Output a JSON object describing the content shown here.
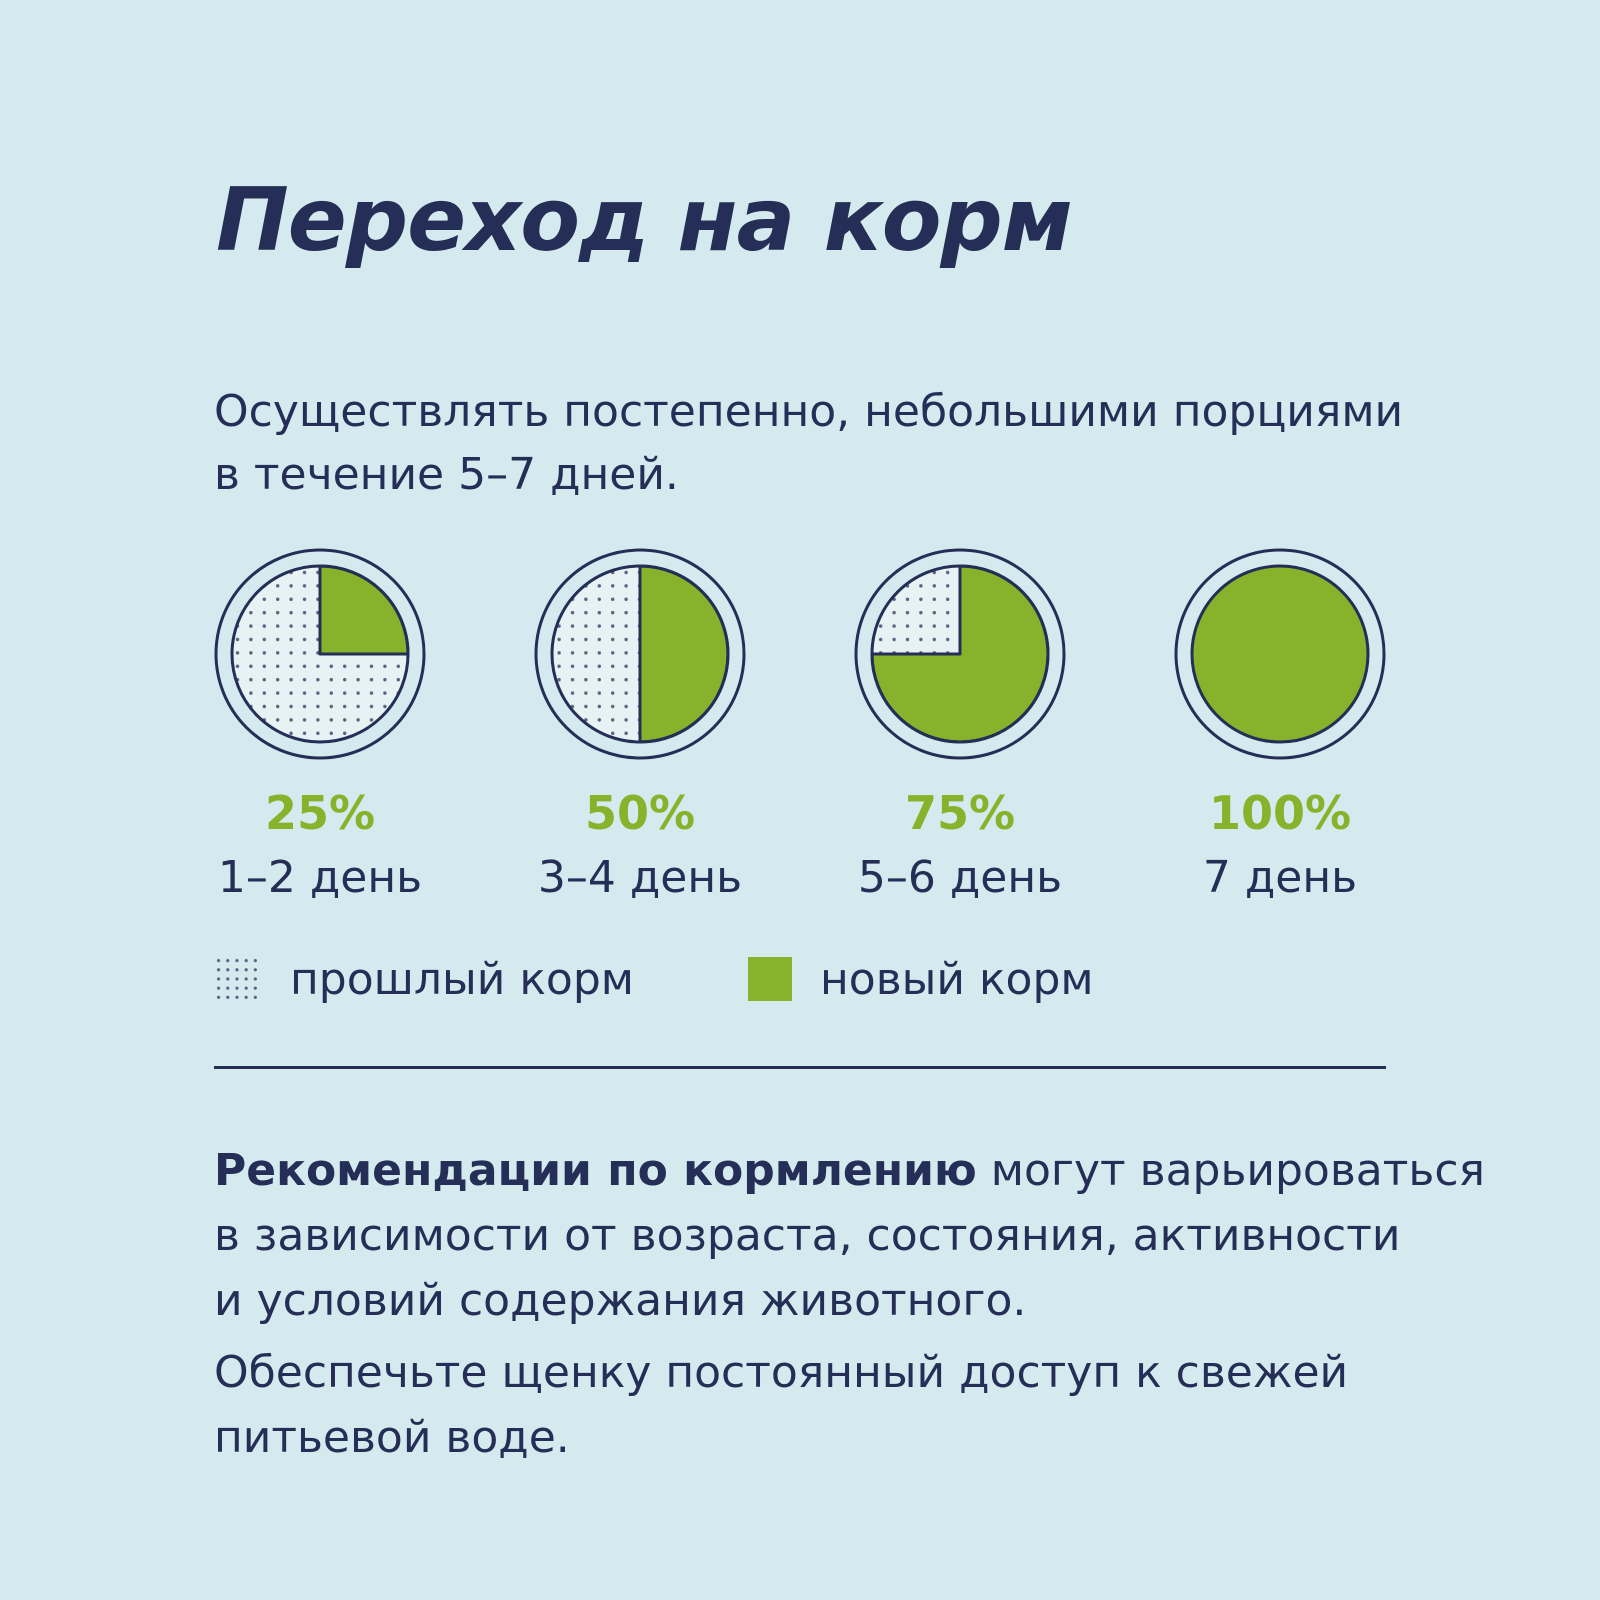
{
  "title": "Переход на корм",
  "intro": {
    "lines": [
      "Осуществлять постепенно, небольшими порциями",
      "в течение 5–7 дней."
    ]
  },
  "colors": {
    "background": "#d4eaee",
    "ink": "#252e56",
    "new_food": "#86b22c",
    "old_food_fill": "#e6f2f4",
    "dots": "#5a607f"
  },
  "chart_data": {
    "type": "pie",
    "categories": [
      "1–2 день",
      "3–4 день",
      "5–6 день",
      "7 день"
    ],
    "labels": [
      "25%",
      "50%",
      "75%",
      "100%"
    ],
    "series": [
      {
        "name": "новый корм",
        "values": [
          25,
          50,
          75,
          100
        ]
      },
      {
        "name": "прошлый корм",
        "values": [
          75,
          50,
          25,
          0
        ]
      }
    ],
    "legend_position": "bottom-left"
  },
  "legend": {
    "old": "прошлый корм",
    "new": "новый корм"
  },
  "note": {
    "bold": "Рекомендации по кормлению",
    "line1_rest": " могут варьироваться",
    "line2": "в зависимости от возраста, состояния, активности",
    "line3": "и условий содержания животного."
  },
  "note2": {
    "line1": "Обеспечьте щенку постоянный доступ к свежей",
    "line2": "питьевой воде."
  }
}
